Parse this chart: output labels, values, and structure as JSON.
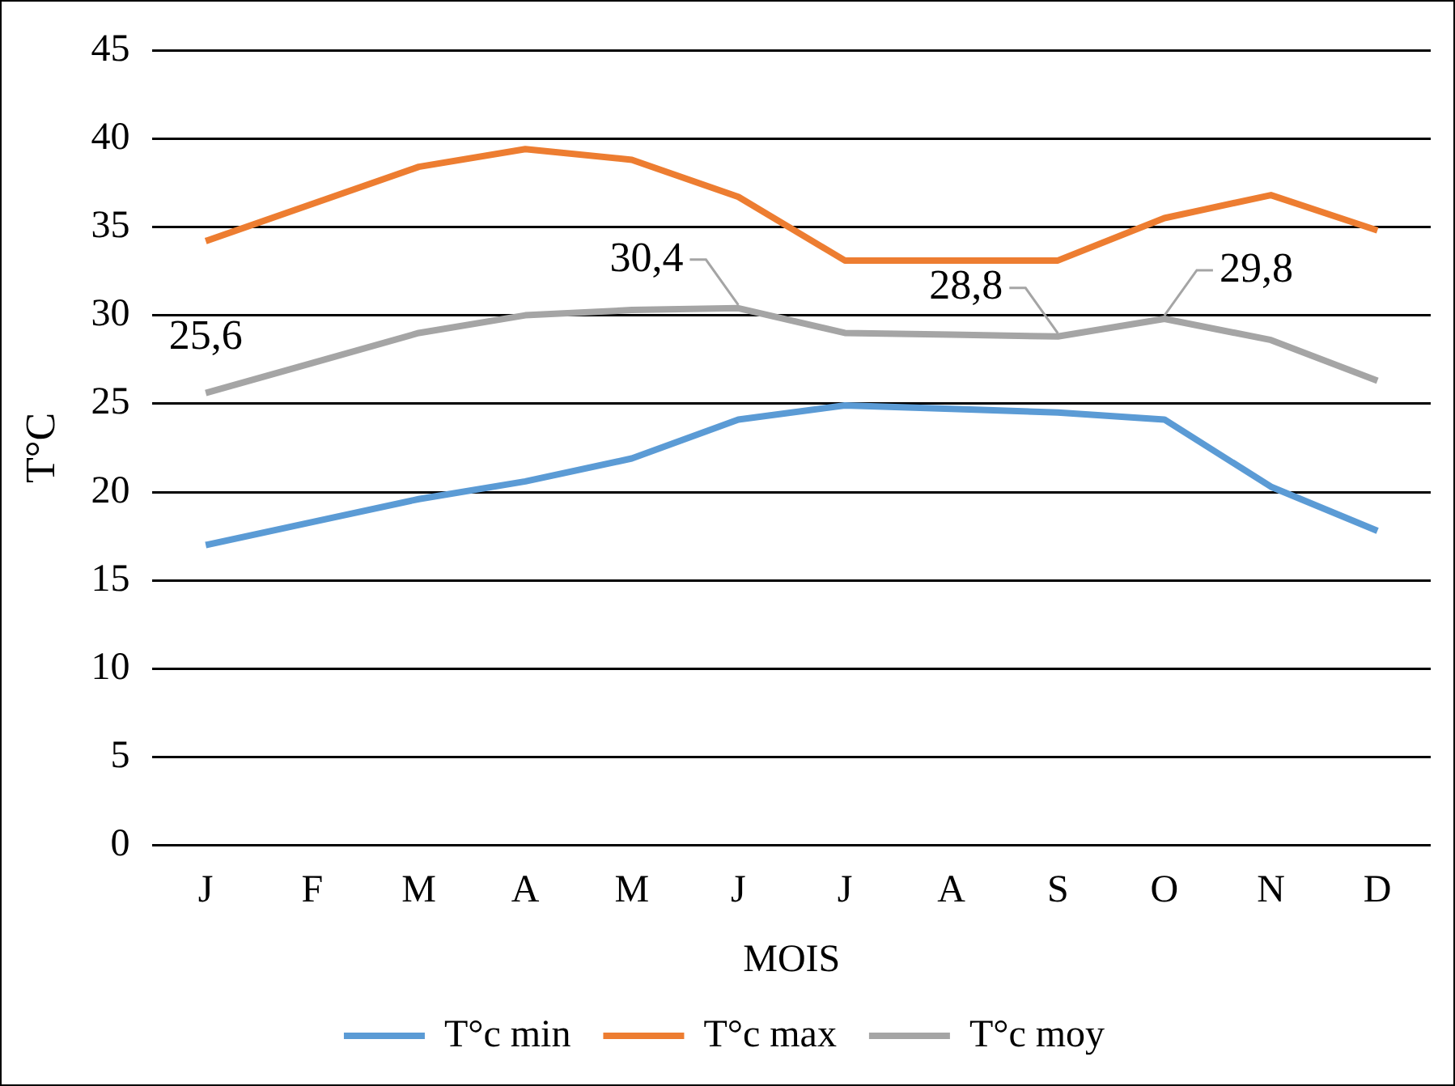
{
  "chart_data": {
    "type": "line",
    "xlabel": "MOIS",
    "ylabel": "T°C",
    "categories": [
      "J",
      "F",
      "M",
      "A",
      "M",
      "J",
      "J",
      "A",
      "S",
      "O",
      "N",
      "D"
    ],
    "series": [
      {
        "name": "T°c min",
        "color": "#5b9bd5",
        "values": [
          17.0,
          18.3,
          19.6,
          20.6,
          21.9,
          24.1,
          24.9,
          24.7,
          24.5,
          24.1,
          20.3,
          17.8
        ]
      },
      {
        "name": "T°c max",
        "color": "#ed7d31",
        "values": [
          34.2,
          36.3,
          38.4,
          39.4,
          38.8,
          36.7,
          33.1,
          33.1,
          33.1,
          35.5,
          36.8,
          34.8
        ]
      },
      {
        "name": "T°c moy",
        "color": "#a5a5a5",
        "values": [
          25.6,
          27.3,
          29.0,
          30.0,
          30.3,
          30.4,
          29.0,
          28.9,
          28.8,
          29.8,
          28.6,
          26.3
        ],
        "value_labels": [
          "25,6",
          null,
          null,
          null,
          null,
          "30,4",
          null,
          null,
          "28,8",
          "29,8",
          null,
          null
        ]
      }
    ],
    "ylim": [
      0,
      45
    ],
    "yticks": [
      0,
      5,
      10,
      15,
      20,
      25,
      30,
      35,
      40,
      45
    ],
    "grid": "y",
    "legend": "bottom",
    "marker": "none",
    "line_style": "solid"
  }
}
